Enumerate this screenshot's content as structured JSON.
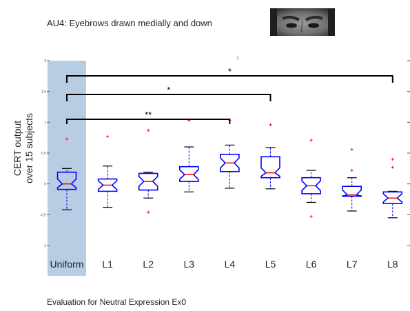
{
  "chart_data": {
    "type": "boxplot",
    "title": "AU4:  Eyebrows drawn medially and down",
    "ylabel_lines": [
      "CERT output",
      "over 15 subjects"
    ],
    "footer": "Evaluation for Neutral Expression Ex0",
    "ylim": [
      -1,
      2
    ],
    "yticks": [
      -1,
      -0.5,
      0,
      0.5,
      1,
      1.5,
      2
    ],
    "yticklabels": [
      "-1",
      "-0.5",
      "0",
      "0.5",
      "1",
      "1.5",
      "2"
    ],
    "categories": [
      "Uniform",
      "L1",
      "L2",
      "L3",
      "L4",
      "L5",
      "L6",
      "L7",
      "L8"
    ],
    "highlight_category": "Uniform",
    "highlight_color": "#b8cce4",
    "box_color": "#0000ff",
    "median_color": "#ff0000",
    "outlier_color": "#ff0000",
    "boxes": [
      {
        "label": "Uniform",
        "whisker_low": -0.42,
        "q1": -0.09,
        "median": 0.0,
        "q3": 0.19,
        "whisker_high": 0.25,
        "outliers": [
          0.73
        ]
      },
      {
        "label": "L1",
        "whisker_low": -0.38,
        "q1": -0.12,
        "median": -0.02,
        "q3": 0.08,
        "whisker_high": 0.29,
        "outliers": [
          0.77
        ]
      },
      {
        "label": "L2",
        "whisker_low": -0.23,
        "q1": -0.1,
        "median": 0.04,
        "q3": 0.17,
        "whisker_high": 0.19,
        "outliers": [
          0.87,
          -0.46
        ]
      },
      {
        "label": "L3",
        "whisker_low": -0.13,
        "q1": 0.04,
        "median": 0.15,
        "q3": 0.28,
        "whisker_high": 0.6,
        "outliers": [
          1.03
        ]
      },
      {
        "label": "L4",
        "whisker_low": -0.07,
        "q1": 0.2,
        "median": 0.34,
        "q3": 0.48,
        "whisker_high": 0.63,
        "outliers": [
          1.03
        ]
      },
      {
        "label": "L5",
        "whisker_low": -0.08,
        "q1": 0.1,
        "median": 0.18,
        "q3": 0.44,
        "whisker_high": 0.59,
        "outliers": [
          0.96
        ]
      },
      {
        "label": "L6",
        "whisker_low": -0.3,
        "q1": -0.16,
        "median": -0.03,
        "q3": 0.1,
        "whisker_high": 0.22,
        "outliers": [
          0.71,
          -0.53
        ]
      },
      {
        "label": "L7",
        "whisker_low": -0.44,
        "q1": -0.2,
        "median": -0.18,
        "q3": -0.04,
        "whisker_high": 0.1,
        "outliers": [
          0.56,
          0.22
        ]
      },
      {
        "label": "L8",
        "whisker_low": -0.55,
        "q1": -0.32,
        "median": -0.23,
        "q3": -0.13,
        "whisker_high": -0.12,
        "outliers": [
          0.4,
          0.27
        ]
      }
    ],
    "significance": [
      {
        "from": "Uniform",
        "to": "L4",
        "label": "**"
      },
      {
        "from": "Uniform",
        "to": "L5",
        "label": "*"
      },
      {
        "from": "Uniform",
        "to": "L8",
        "label": "*"
      }
    ]
  },
  "face_image": {
    "description_icon": "face-eyebrows-icon"
  }
}
